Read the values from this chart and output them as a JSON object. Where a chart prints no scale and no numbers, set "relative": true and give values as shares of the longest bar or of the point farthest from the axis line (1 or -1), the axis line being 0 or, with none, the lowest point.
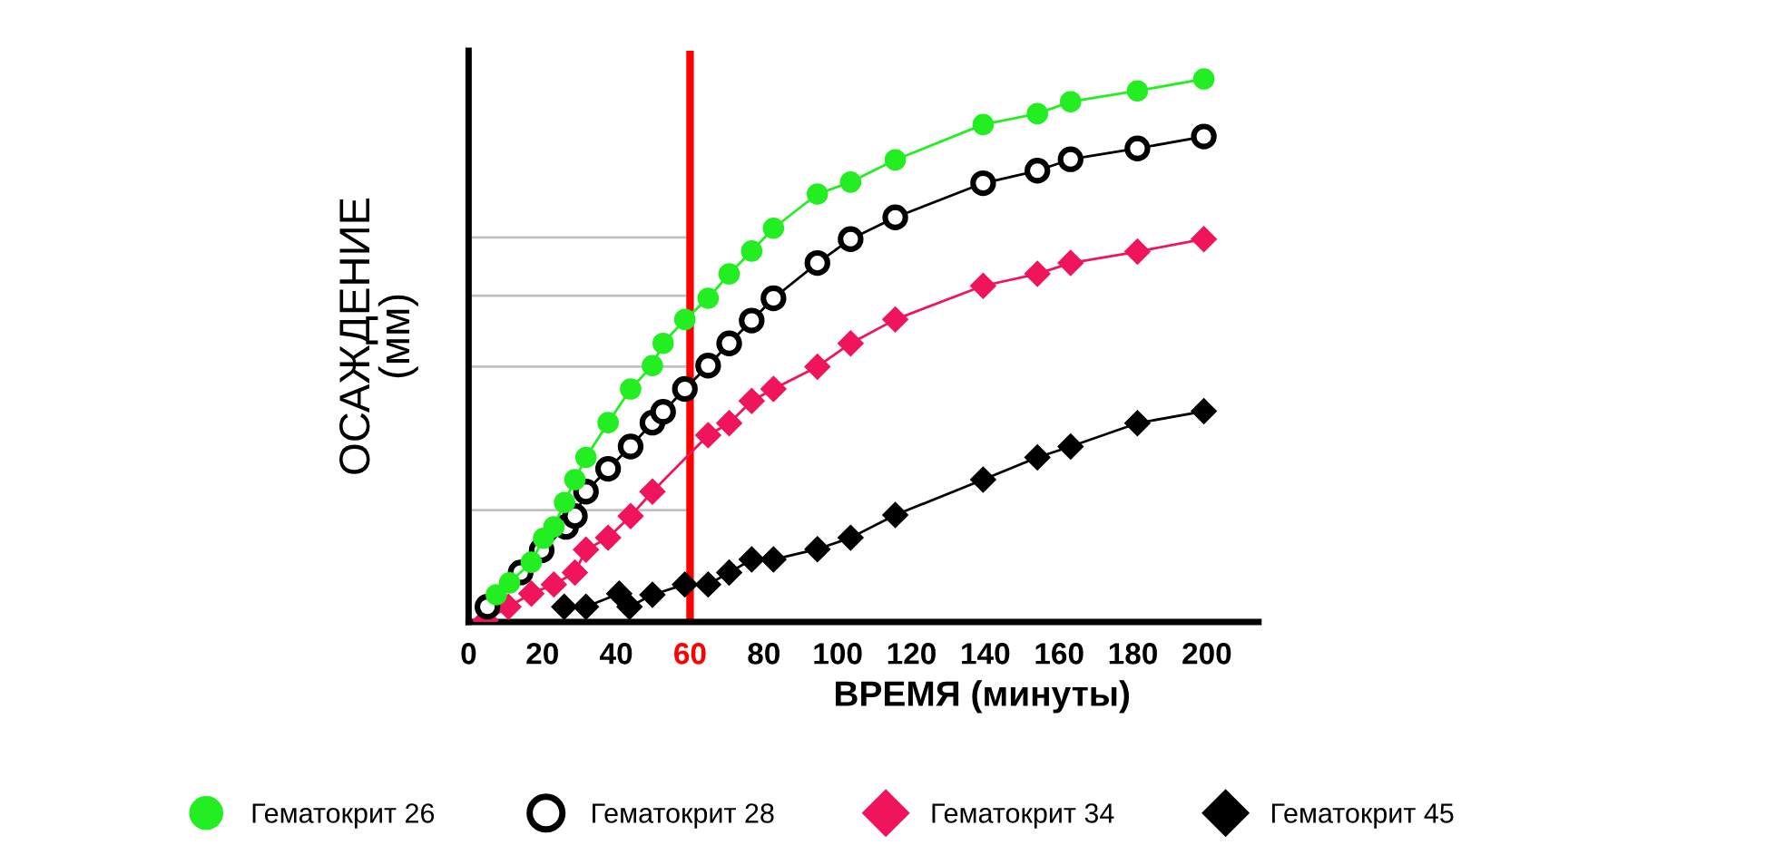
{
  "chart_data": {
    "type": "line",
    "relative": true,
    "xlabel": "ВРЕМЯ (минуты)",
    "ylabel": "ОСАЖДЕНИЕ\n(мм)",
    "xlim": [
      0,
      214
    ],
    "xticks": [
      0,
      20,
      40,
      60,
      80,
      100,
      120,
      140,
      160,
      180,
      200
    ],
    "legend": "bottom",
    "grid": false,
    "ref_lines": [
      {
        "axis": "x",
        "value": 60,
        "color": "#ff0000"
      },
      {
        "axis": "y",
        "value": 0.708,
        "color": "#c0c0c0"
      },
      {
        "axis": "y",
        "value": 0.601,
        "color": "#c0c0c0"
      },
      {
        "axis": "y",
        "value": 0.47,
        "color": "#c0c0c0"
      },
      {
        "axis": "y",
        "value": 0.206,
        "color": "#c0c0c0"
      }
    ],
    "series": [
      {
        "name": "Гематокрит 26",
        "color": "#22ee22",
        "marker": "circle",
        "x": [
          7.5,
          11.1,
          17.0,
          20.3,
          23.1,
          26.0,
          28.8,
          31.8,
          37.8,
          43.9,
          49.8,
          52.7,
          58.6,
          64.9,
          70.6,
          76.7,
          82.6,
          94.5,
          103.5,
          115.6,
          139.4,
          154.1,
          163.1,
          181.2,
          199.2
        ],
        "values": [
          0.05,
          0.072,
          0.11,
          0.154,
          0.175,
          0.22,
          0.262,
          0.303,
          0.367,
          0.429,
          0.472,
          0.513,
          0.557,
          0.596,
          0.641,
          0.683,
          0.725,
          0.788,
          0.81,
          0.851,
          0.916,
          0.936,
          0.958,
          0.978,
          1.0
        ]
      },
      {
        "name": "Гематокрит 28",
        "color": "#000000",
        "marker": "open circle",
        "x": [
          5.1,
          14.1,
          19.8,
          26.4,
          28.8,
          31.8,
          37.8,
          43.9,
          49.8,
          52.7,
          58.6,
          64.9,
          70.6,
          76.7,
          82.6,
          94.5,
          103.5,
          115.6,
          139.4,
          154.1,
          163.1,
          181.2,
          199.2
        ],
        "values": [
          0.028,
          0.091,
          0.132,
          0.175,
          0.195,
          0.24,
          0.282,
          0.323,
          0.367,
          0.387,
          0.429,
          0.472,
          0.513,
          0.555,
          0.596,
          0.661,
          0.705,
          0.745,
          0.808,
          0.831,
          0.852,
          0.872,
          0.894
        ]
      },
      {
        "name": "Гематокрит 34",
        "color": "#f0145a",
        "marker": "diamond",
        "x": [
          4.6,
          10.8,
          17.0,
          23.1,
          28.8,
          31.8,
          37.8,
          43.9,
          49.8,
          64.9,
          70.6,
          76.7,
          82.6,
          94.5,
          103.5,
          115.6,
          139.4,
          154.1,
          163.1,
          181.2,
          199.2
        ],
        "values": [
          0.003,
          0.028,
          0.052,
          0.069,
          0.091,
          0.133,
          0.155,
          0.195,
          0.24,
          0.344,
          0.366,
          0.407,
          0.429,
          0.47,
          0.513,
          0.557,
          0.619,
          0.641,
          0.661,
          0.682,
          0.705
        ]
      },
      {
        "name": "Гематокрит 45",
        "color": "#000000",
        "marker": "diamond",
        "x": [
          25.9,
          31.8,
          40.8,
          43.6,
          49.8,
          58.6,
          64.9,
          70.6,
          76.7,
          82.6,
          94.5,
          103.5,
          115.6,
          139.4,
          154.1,
          163.1,
          181.2,
          199.2
        ],
        "values": [
          0.028,
          0.028,
          0.052,
          0.028,
          0.05,
          0.069,
          0.069,
          0.091,
          0.115,
          0.115,
          0.134,
          0.155,
          0.197,
          0.262,
          0.303,
          0.323,
          0.366,
          0.388
        ]
      }
    ]
  }
}
